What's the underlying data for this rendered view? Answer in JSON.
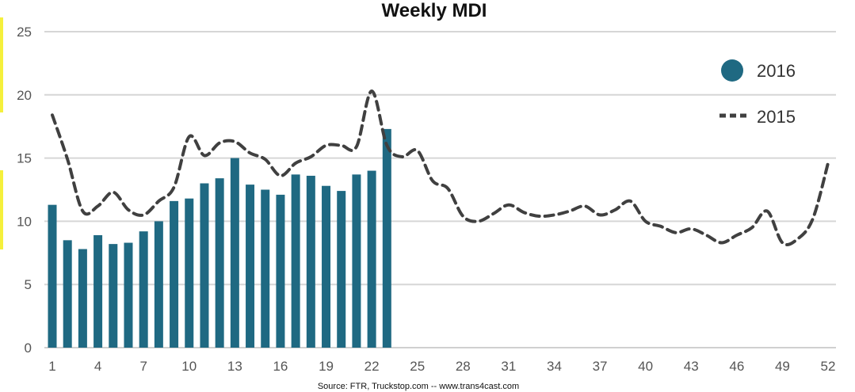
{
  "chart_data": {
    "type": "bar",
    "title": "Weekly MDI",
    "xlabel": "",
    "ylabel": "",
    "ylim": [
      0,
      25
    ],
    "yticks": [
      0,
      5,
      10,
      15,
      20,
      25
    ],
    "xlim": [
      1,
      52
    ],
    "xticks": [
      1,
      4,
      7,
      10,
      13,
      16,
      19,
      22,
      25,
      28,
      31,
      34,
      37,
      40,
      43,
      46,
      49,
      52
    ],
    "grid": true,
    "legend_position": "top-right",
    "colors": {
      "bar": "#1f6982",
      "line": "#404040"
    },
    "series": [
      {
        "name": "2016",
        "type": "bar",
        "x": [
          1,
          2,
          3,
          4,
          5,
          6,
          7,
          8,
          9,
          10,
          11,
          12,
          13,
          14,
          15,
          16,
          17,
          18,
          19,
          20,
          21,
          22,
          23
        ],
        "values": [
          11.3,
          8.5,
          7.8,
          8.9,
          8.2,
          8.3,
          9.2,
          10.0,
          11.6,
          11.8,
          13.0,
          13.4,
          15.0,
          12.9,
          12.5,
          12.1,
          13.7,
          13.6,
          12.8,
          12.4,
          13.7,
          14.0,
          17.3
        ]
      },
      {
        "name": "2015",
        "type": "line",
        "style": "dashed",
        "x": [
          1,
          2,
          3,
          4,
          5,
          6,
          7,
          8,
          9,
          10,
          11,
          12,
          13,
          14,
          15,
          16,
          17,
          18,
          19,
          20,
          21,
          22,
          23,
          24,
          25,
          26,
          27,
          28,
          29,
          30,
          31,
          32,
          33,
          34,
          35,
          36,
          37,
          38,
          39,
          40,
          41,
          42,
          43,
          44,
          45,
          46,
          47,
          48,
          49,
          50,
          51,
          52
        ],
        "values": [
          18.4,
          14.9,
          10.8,
          11.2,
          12.3,
          10.9,
          10.5,
          11.6,
          12.7,
          16.7,
          15.2,
          16.2,
          16.3,
          15.4,
          14.9,
          13.6,
          14.6,
          15.1,
          16.0,
          16.0,
          15.9,
          20.3,
          16.0,
          15.1,
          15.6,
          13.2,
          12.6,
          10.4,
          10.0,
          10.6,
          11.3,
          10.7,
          10.4,
          10.5,
          10.8,
          11.2,
          10.5,
          10.9,
          11.6,
          10.0,
          9.6,
          9.1,
          9.4,
          8.9,
          8.3,
          8.9,
          9.5,
          10.8,
          8.3,
          8.6,
          10.2,
          14.6
        ]
      }
    ],
    "source": "Source: FTR, Truckstop.com -- www.trans4cast.com"
  }
}
